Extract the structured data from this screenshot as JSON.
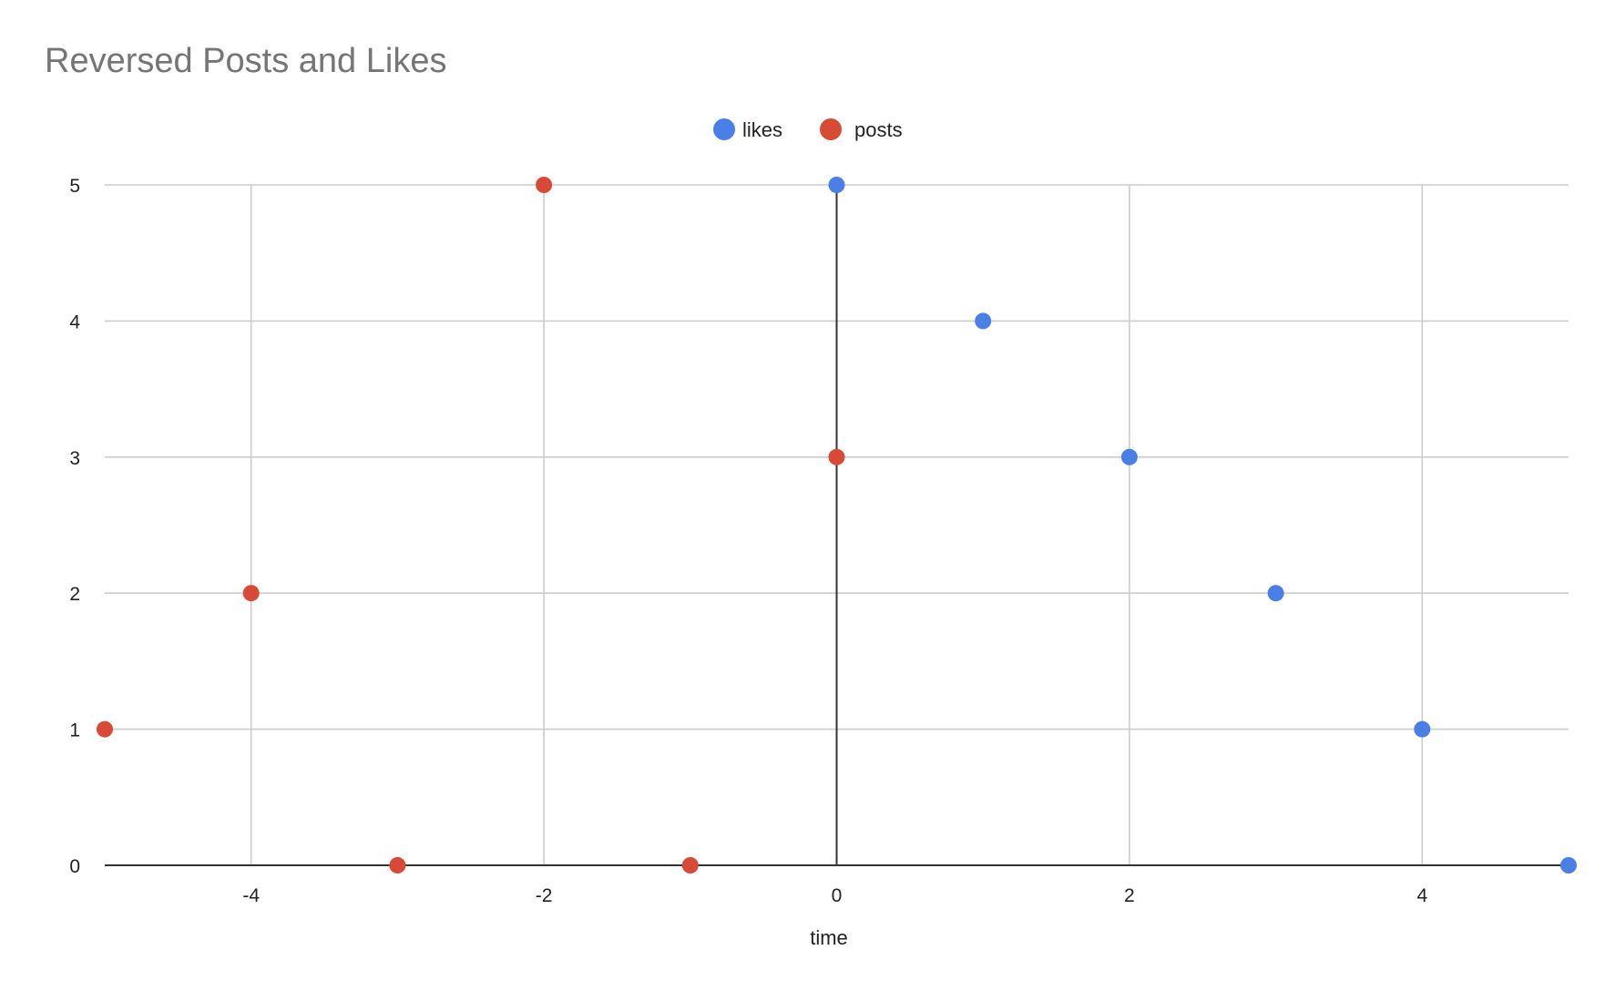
{
  "chart_data": {
    "type": "scatter",
    "title": "Reversed Posts and Likes",
    "xlabel": "time",
    "ylabel": "",
    "xlim": [
      -5,
      5
    ],
    "ylim": [
      0,
      5
    ],
    "xticks": [
      -4,
      -2,
      0,
      2,
      4
    ],
    "yticks": [
      0,
      1,
      2,
      3,
      4,
      5
    ],
    "grid": true,
    "legend_position": "top-center",
    "series": [
      {
        "name": "likes",
        "color": "#4a7fe8",
        "points": [
          {
            "x": 0,
            "y": 5
          },
          {
            "x": 1,
            "y": 4
          },
          {
            "x": 2,
            "y": 3
          },
          {
            "x": 3,
            "y": 2
          },
          {
            "x": 4,
            "y": 1
          },
          {
            "x": 5,
            "y": 0
          }
        ]
      },
      {
        "name": "posts",
        "color": "#d94a36",
        "points": [
          {
            "x": -5,
            "y": 1
          },
          {
            "x": -4,
            "y": 2
          },
          {
            "x": -3,
            "y": 0
          },
          {
            "x": -2,
            "y": 5
          },
          {
            "x": -1,
            "y": 0
          },
          {
            "x": 0,
            "y": 3
          }
        ]
      }
    ]
  }
}
